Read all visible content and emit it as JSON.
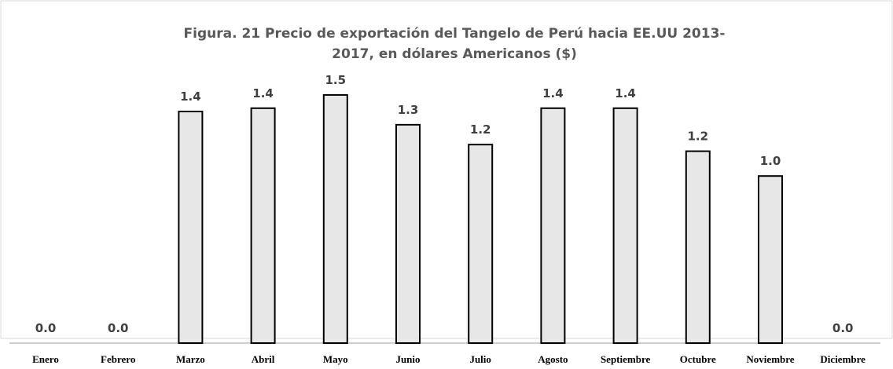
{
  "chart_data": {
    "type": "bar",
    "title": "Figura. 21 Precio de exportación del Tangelo de Perú hacia EE.UU  2013-2017, en dólares Americanos ($)",
    "categories": [
      "Enero",
      "Febrero",
      "Marzo",
      "Abril",
      "Mayo",
      "Junio",
      "Julio",
      "Agosto",
      "Septiembre",
      "Octubre",
      "Noviembre",
      "Diciembre"
    ],
    "values": [
      0,
      0,
      1.4,
      1.42,
      1.5,
      1.32,
      1.2,
      1.42,
      1.42,
      1.16,
      1.01,
      0
    ],
    "value_labels": [
      "0.0",
      "0.0",
      "1.4",
      "1.4",
      "1.5",
      "1.3",
      "1.2",
      "1.4",
      "1.4",
      "1.2",
      "1.0",
      "0.0"
    ],
    "color": "#e7e7e7"
  }
}
